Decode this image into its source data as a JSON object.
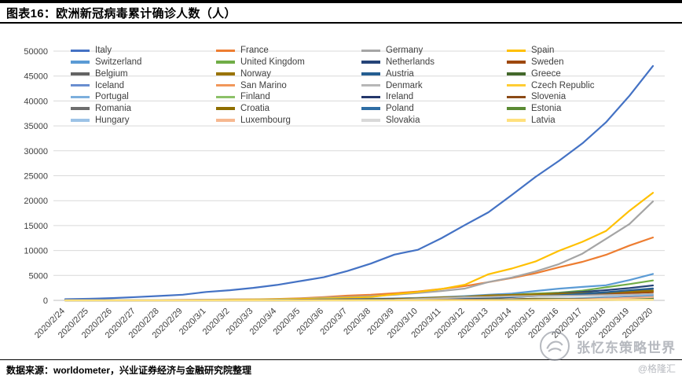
{
  "header": {
    "title": "图表16：欧洲新冠病毒累计确诊人数（人）"
  },
  "footer": {
    "source": "数据来源：worldometer，兴业证券经济与金融研究院整理"
  },
  "watermark": {
    "name": "张忆东策略世界",
    "handle": "@格隆汇"
  },
  "chart_data": {
    "type": "line",
    "title": "欧洲新冠病毒累计确诊人数（人）",
    "xlabel": "",
    "ylabel": "",
    "ylim": [
      0,
      50000
    ],
    "yticks": [
      0,
      5000,
      10000,
      15000,
      20000,
      25000,
      30000,
      35000,
      40000,
      45000,
      50000
    ],
    "grid": true,
    "legend_position": "top-inside",
    "x": [
      "2020/2/24",
      "2020/2/25",
      "2020/2/26",
      "2020/2/27",
      "2020/2/28",
      "2020/2/29",
      "2020/3/1",
      "2020/3/2",
      "2020/3/3",
      "2020/3/4",
      "2020/3/5",
      "2020/3/6",
      "2020/3/7",
      "2020/3/8",
      "2020/3/9",
      "2020/3/10",
      "2020/3/11",
      "2020/3/12",
      "2020/3/13",
      "2020/3/14",
      "2020/3/15",
      "2020/3/16",
      "2020/3/17",
      "2020/3/18",
      "2020/3/19",
      "2020/3/20"
    ],
    "series": [
      {
        "name": "Italy",
        "color": "#4472C4",
        "values": [
          229,
          322,
          453,
          655,
          888,
          1128,
          1694,
          2036,
          2502,
          3089,
          3858,
          4636,
          5883,
          7375,
          9172,
          10149,
          12462,
          15113,
          17660,
          21157,
          24747,
          27980,
          31506,
          35713,
          41035,
          47021
        ]
      },
      {
        "name": "France",
        "color": "#ED7D31",
        "values": [
          12,
          14,
          18,
          38,
          57,
          100,
          130,
          191,
          212,
          285,
          423,
          653,
          949,
          1126,
          1412,
          1784,
          2281,
          2876,
          3661,
          4499,
          5423,
          6633,
          7730,
          9134,
          10995,
          12612
        ]
      },
      {
        "name": "Germany",
        "color": "#A5A5A5",
        "values": [
          16,
          18,
          21,
          26,
          53,
          66,
          117,
          150,
          188,
          240,
          349,
          534,
          684,
          847,
          1112,
          1460,
          1884,
          2369,
          3675,
          4585,
          5795,
          7272,
          9367,
          12327,
          15320,
          19848
        ]
      },
      {
        "name": "Spain",
        "color": "#FFC000",
        "values": [
          3,
          6,
          13,
          15,
          32,
          45,
          84,
          120,
          165,
          228,
          282,
          401,
          525,
          674,
          1231,
          1695,
          2277,
          3146,
          5232,
          6391,
          7798,
          9942,
          11748,
          13910,
          17963,
          21571
        ]
      },
      {
        "name": "Switzerland",
        "color": "#5B9BD5",
        "values": [
          0,
          1,
          1,
          8,
          8,
          18,
          27,
          42,
          56,
          90,
          114,
          214,
          268,
          337,
          374,
          491,
          652,
          854,
          1139,
          1359,
          1878,
          2353,
          2700,
          3028,
          4075,
          5294
        ]
      },
      {
        "name": "United Kingdom",
        "color": "#70AD47",
        "values": [
          13,
          13,
          13,
          15,
          20,
          23,
          36,
          40,
          51,
          85,
          115,
          163,
          206,
          273,
          321,
          382,
          456,
          590,
          798,
          1140,
          1372,
          1543,
          1950,
          2626,
          3269,
          3983
        ]
      },
      {
        "name": "Netherlands",
        "color": "#264478",
        "values": [
          0,
          0,
          0,
          1,
          2,
          7,
          10,
          18,
          24,
          38,
          82,
          128,
          188,
          265,
          321,
          382,
          503,
          614,
          804,
          959,
          1135,
          1413,
          1705,
          2051,
          2460,
          2994
        ]
      },
      {
        "name": "Sweden",
        "color": "#9E480E",
        "values": [
          0,
          0,
          2,
          7,
          7,
          12,
          14,
          15,
          21,
          35,
          94,
          101,
          161,
          203,
          248,
          355,
          500,
          599,
          814,
          961,
          1022,
          1103,
          1190,
          1279,
          1439,
          1639
        ]
      },
      {
        "name": "Belgium",
        "color": "#636363",
        "values": [
          1,
          1,
          1,
          1,
          1,
          1,
          2,
          8,
          13,
          23,
          50,
          109,
          169,
          200,
          239,
          267,
          314,
          399,
          559,
          689,
          886,
          1058,
          1243,
          1486,
          1795,
          2257
        ]
      },
      {
        "name": "Norway",
        "color": "#997300",
        "values": [
          0,
          0,
          1,
          1,
          1,
          15,
          19,
          25,
          32,
          56,
          87,
          108,
          147,
          176,
          205,
          400,
          598,
          702,
          996,
          1090,
          1221,
          1333,
          1463,
          1550,
          1746,
          1914
        ]
      },
      {
        "name": "Austria",
        "color": "#255E91",
        "values": [
          0,
          0,
          2,
          3,
          5,
          9,
          14,
          18,
          21,
          29,
          41,
          55,
          79,
          104,
          131,
          182,
          246,
          302,
          504,
          655,
          860,
          1018,
          1332,
          1646,
          2013,
          2388
        ]
      },
      {
        "name": "Greece",
        "color": "#43682B",
        "values": [
          0,
          0,
          1,
          3,
          4,
          7,
          7,
          7,
          7,
          9,
          31,
          45,
          46,
          73,
          73,
          89,
          99,
          117,
          190,
          228,
          331,
          352,
          387,
          418,
          418,
          495
        ]
      },
      {
        "name": "Iceland",
        "color": "#698ED0",
        "values": [
          0,
          0,
          0,
          0,
          1,
          1,
          3,
          9,
          11,
          26,
          34,
          43,
          50,
          55,
          58,
          69,
          81,
          103,
          134,
          156,
          171,
          180,
          220,
          250,
          330,
          409
        ]
      },
      {
        "name": "San Marino",
        "color": "#F1975A",
        "values": [
          0,
          0,
          0,
          1,
          1,
          8,
          8,
          10,
          16,
          16,
          21,
          21,
          23,
          36,
          36,
          51,
          62,
          69,
          80,
          80,
          101,
          109,
          109,
          119,
          144,
          144
        ]
      },
      {
        "name": "Denmark",
        "color": "#B7B7B7",
        "values": [
          0,
          0,
          0,
          1,
          1,
          3,
          4,
          4,
          10,
          10,
          21,
          23,
          23,
          35,
          90,
          262,
          442,
          615,
          674,
          827,
          864,
          914,
          977,
          1057,
          1151,
          1255
        ]
      },
      {
        "name": "Czech Republic",
        "color": "#FFCD33",
        "values": [
          0,
          0,
          0,
          0,
          0,
          0,
          3,
          3,
          5,
          8,
          12,
          18,
          26,
          31,
          38,
          63,
          94,
          116,
          141,
          189,
          253,
          298,
          396,
          464,
          694,
          833
        ]
      },
      {
        "name": "Portugal",
        "color": "#7CAFDD",
        "values": [
          0,
          0,
          0,
          0,
          0,
          0,
          0,
          2,
          2,
          5,
          8,
          13,
          20,
          30,
          30,
          41,
          59,
          59,
          112,
          169,
          245,
          331,
          448,
          642,
          785,
          1020
        ]
      },
      {
        "name": "Finland",
        "color": "#8CC168",
        "values": [
          1,
          1,
          2,
          2,
          2,
          3,
          6,
          6,
          7,
          7,
          12,
          15,
          19,
          23,
          30,
          40,
          59,
          109,
          155,
          225,
          244,
          272,
          319,
          359,
          400,
          450
        ]
      },
      {
        "name": "Ireland",
        "color": "#24376B",
        "values": [
          0,
          0,
          0,
          0,
          0,
          1,
          1,
          1,
          2,
          6,
          13,
          18,
          19,
          21,
          24,
          34,
          43,
          70,
          90,
          129,
          169,
          223,
          292,
          366,
          557,
          683
        ]
      },
      {
        "name": "Slovenia",
        "color": "#8B4A16",
        "values": [
          0,
          0,
          0,
          0,
          0,
          0,
          0,
          0,
          0,
          1,
          6,
          9,
          16,
          16,
          31,
          57,
          89,
          141,
          181,
          219,
          253,
          275,
          275,
          286,
          319,
          341
        ]
      },
      {
        "name": "Romania",
        "color": "#6E6E6E",
        "values": [
          0,
          0,
          1,
          1,
          3,
          3,
          3,
          3,
          4,
          6,
          6,
          9,
          13,
          15,
          15,
          25,
          29,
          49,
          89,
          123,
          131,
          158,
          184,
          260,
          277,
          308
        ]
      },
      {
        "name": "Croatia",
        "color": "#8F6E00",
        "values": [
          0,
          0,
          1,
          3,
          3,
          6,
          7,
          9,
          9,
          10,
          10,
          11,
          12,
          12,
          12,
          14,
          19,
          27,
          32,
          38,
          49,
          57,
          65,
          81,
          105,
          128
        ]
      },
      {
        "name": "Poland",
        "color": "#2E6DA4",
        "values": [
          0,
          0,
          0,
          0,
          0,
          0,
          0,
          0,
          0,
          1,
          1,
          5,
          5,
          11,
          16,
          22,
          31,
          49,
          68,
          103,
          119,
          177,
          238,
          251,
          355,
          425
        ]
      },
      {
        "name": "Estonia",
        "color": "#5A8A33",
        "values": [
          0,
          0,
          0,
          1,
          1,
          1,
          1,
          1,
          1,
          1,
          2,
          10,
          10,
          10,
          10,
          12,
          16,
          27,
          79,
          115,
          171,
          205,
          225,
          258,
          267,
          283
        ]
      },
      {
        "name": "Hungary",
        "color": "#9DC3E6",
        "values": [
          0,
          0,
          0,
          0,
          0,
          0,
          0,
          0,
          0,
          2,
          2,
          4,
          5,
          7,
          9,
          12,
          13,
          16,
          19,
          30,
          32,
          39,
          50,
          58,
          73,
          85
        ]
      },
      {
        "name": "Luxembourg",
        "color": "#F6B890",
        "values": [
          0,
          0,
          0,
          0,
          0,
          1,
          1,
          1,
          1,
          1,
          2,
          3,
          4,
          5,
          5,
          7,
          7,
          26,
          34,
          51,
          77,
          140,
          203,
          335,
          484,
          670
        ]
      },
      {
        "name": "Slovakia",
        "color": "#D9D9D9",
        "values": [
          0,
          0,
          0,
          0,
          0,
          0,
          0,
          0,
          0,
          0,
          0,
          1,
          3,
          3,
          7,
          7,
          10,
          16,
          32,
          44,
          54,
          63,
          72,
          105,
          123,
          137
        ]
      },
      {
        "name": "Latvia",
        "color": "#FFE07D",
        "values": [
          0,
          0,
          0,
          0,
          0,
          0,
          0,
          2,
          2,
          3,
          3,
          3,
          3,
          10,
          10,
          17,
          17,
          26,
          30,
          34,
          34,
          36,
          49,
          71,
          86,
          111
        ]
      }
    ]
  }
}
